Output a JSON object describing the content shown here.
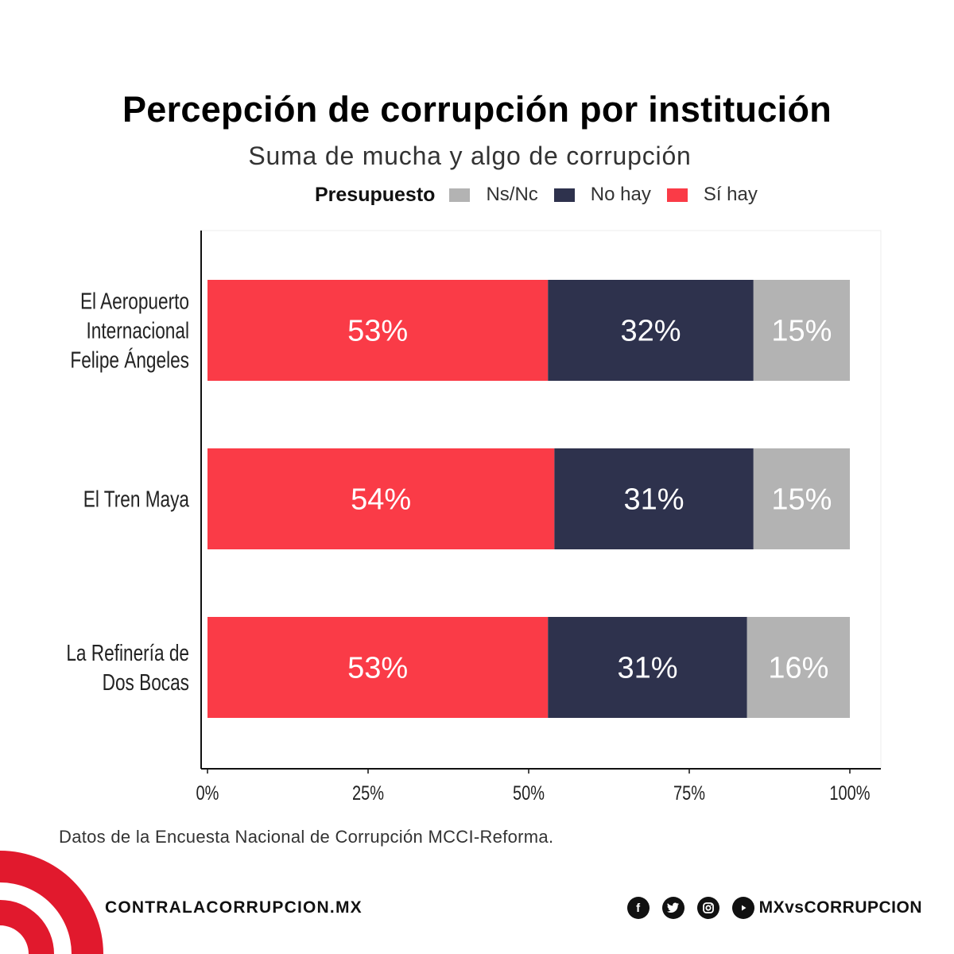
{
  "header": {
    "title": "Percepción de corrupción por institución",
    "subtitle": "Suma de mucha y algo de corrupción"
  },
  "legend": {
    "title": "Presupuesto",
    "items": [
      {
        "label": "Ns/Nc",
        "color": "#B3B3B3"
      },
      {
        "label": "No hay",
        "color": "#2E324D"
      },
      {
        "label": "Sí hay",
        "color": "#FA3B47"
      }
    ]
  },
  "chart_data": {
    "type": "bar",
    "orientation": "horizontal",
    "stacked": true,
    "title": "Percepción de corrupción por institución",
    "subtitle": "Suma de mucha y algo de corrupción",
    "categories": [
      "El Aeropuerto Internacional Felipe Ángeles",
      "El Tren Maya",
      "La Refinería de Dos Bocas"
    ],
    "category_lines": [
      [
        "El Aeropuerto",
        "Internacional",
        "Felipe Ángeles"
      ],
      [
        "El Tren Maya"
      ],
      [
        "La Refinería de",
        "Dos Bocas"
      ]
    ],
    "series": [
      {
        "name": "Sí hay",
        "values": [
          53,
          54,
          53
        ],
        "color": "#FA3B47",
        "labels": [
          "53%",
          "54%",
          "53%"
        ]
      },
      {
        "name": "No hay",
        "values": [
          32,
          31,
          31
        ],
        "color": "#2E324D",
        "labels": [
          "32%",
          "31%",
          "31%"
        ]
      },
      {
        "name": "Ns/Nc",
        "values": [
          15,
          15,
          16
        ],
        "color": "#B3B3B3",
        "labels": [
          "15%",
          "15%",
          "16%"
        ]
      }
    ],
    "xlim": [
      0,
      100
    ],
    "xticks": [
      0,
      25,
      50,
      75,
      100
    ],
    "xtick_labels": [
      "0%",
      "25%",
      "50%",
      "75%",
      "100%"
    ],
    "legend_title": "Presupuesto",
    "legend_position": "top",
    "grid": false
  },
  "footer": {
    "source": "Datos de la Encuesta Nacional de Corrupción MCCI-Reforma.",
    "website": "CONTRALACORRUPCION.MX",
    "social_handle": "MXvsCORRUPCION",
    "social_icons": [
      "facebook-icon",
      "twitter-icon",
      "instagram-icon",
      "youtube-icon"
    ],
    "logo_color": "#E1192D"
  }
}
